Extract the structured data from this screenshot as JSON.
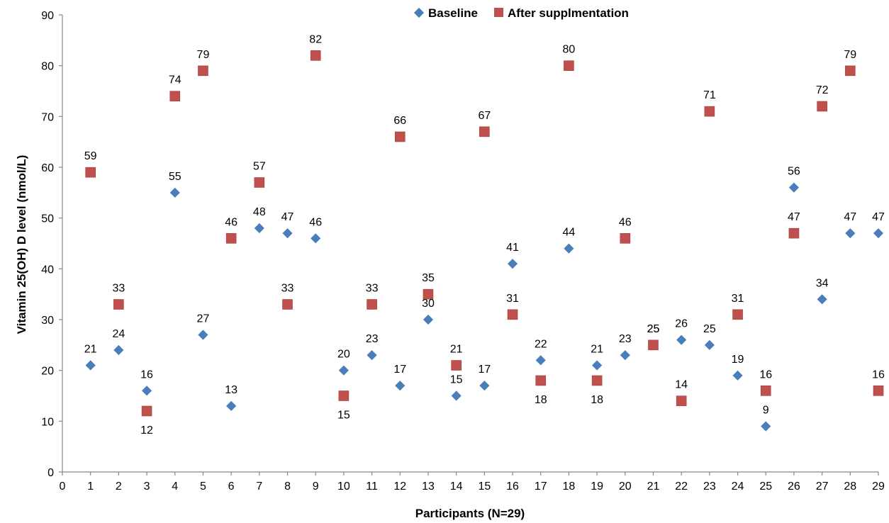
{
  "chart_data": {
    "type": "scatter",
    "title": "",
    "xlabel": "Participants (N=29)",
    "ylabel": "Vitamin 25(OH) D level (nmol/L)",
    "xlim": [
      0,
      29
    ],
    "ylim": [
      0,
      90
    ],
    "x_ticks": [
      0,
      1,
      2,
      3,
      4,
      5,
      6,
      7,
      8,
      9,
      10,
      11,
      12,
      13,
      14,
      15,
      16,
      17,
      18,
      19,
      20,
      21,
      22,
      23,
      24,
      25,
      26,
      27,
      28,
      29
    ],
    "y_ticks": [
      0,
      10,
      20,
      30,
      40,
      50,
      60,
      70,
      80,
      90
    ],
    "grid": false,
    "legend_position": "top",
    "x": [
      1,
      2,
      3,
      4,
      5,
      6,
      7,
      8,
      9,
      10,
      11,
      12,
      13,
      14,
      15,
      16,
      17,
      18,
      19,
      20,
      21,
      22,
      23,
      24,
      25,
      26,
      27,
      28,
      29
    ],
    "series": [
      {
        "name": "Baseline",
        "marker": "diamond",
        "color": "#4a7ebb",
        "values": [
          21,
          24,
          16,
          55,
          27,
          13,
          48,
          47,
          46,
          20,
          23,
          17,
          30,
          15,
          17,
          41,
          22,
          44,
          21,
          23,
          25,
          26,
          25,
          19,
          9,
          56,
          34,
          47,
          47
        ],
        "label_positions": [
          "above",
          "above",
          "above",
          "above",
          "above",
          "above",
          "above",
          "above",
          "above",
          "above",
          "above",
          "above",
          "above",
          "above",
          "above",
          "above",
          "above",
          "above",
          "above",
          "above",
          "above",
          "above",
          "above",
          "above",
          "above",
          "above",
          "above",
          "above",
          "above"
        ]
      },
      {
        "name": "After supplmentation",
        "marker": "square",
        "color": "#c0504d",
        "values": [
          59,
          33,
          12,
          74,
          79,
          46,
          57,
          33,
          82,
          15,
          33,
          66,
          35,
          21,
          67,
          31,
          18,
          80,
          18,
          46,
          25,
          14,
          71,
          31,
          16,
          47,
          72,
          79,
          16
        ],
        "label_positions": [
          "above",
          "above",
          "below",
          "above",
          "above",
          "above",
          "above",
          "above",
          "above",
          "below",
          "above",
          "above",
          "above",
          "above",
          "above",
          "above",
          "below",
          "above",
          "below",
          "above",
          "above",
          "above",
          "above",
          "above",
          "above",
          "above",
          "above",
          "above",
          "above"
        ]
      }
    ]
  }
}
